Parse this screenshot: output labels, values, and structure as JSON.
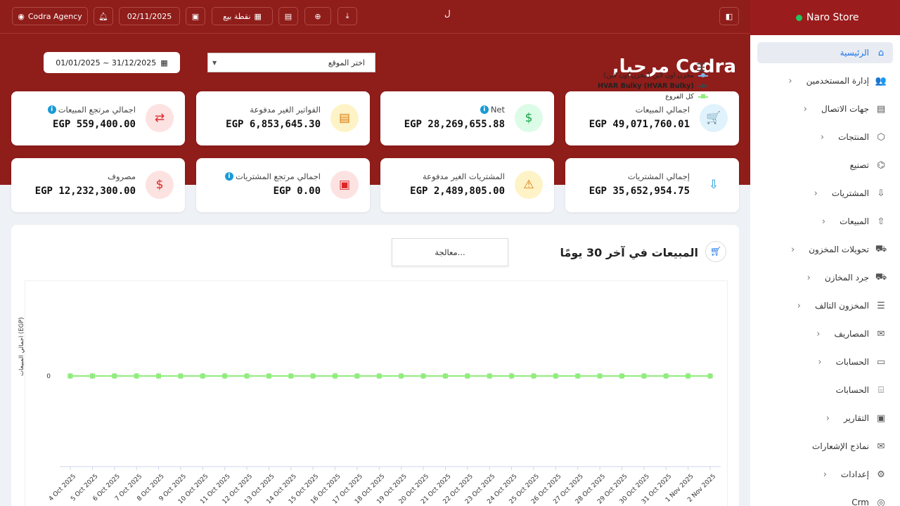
{
  "topbar": {
    "user_label": "Codra Agency",
    "date": "02/11/2025",
    "pos_label": "نقطة بيع",
    "spinner_glyph": "ﻝ"
  },
  "sidebar": {
    "store_name": "Naro Store",
    "items": [
      {
        "label": "الرئيسية",
        "icon": "home-icon",
        "glyph": "⌂",
        "active": true,
        "has_chevron": false
      },
      {
        "label": "إدارة المستخدمين",
        "icon": "users-icon",
        "glyph": "👥",
        "has_chevron": true
      },
      {
        "label": "جهات الاتصال",
        "icon": "contacts-icon",
        "glyph": "▤",
        "has_chevron": true
      },
      {
        "label": "المنتجات",
        "icon": "box-icon",
        "glyph": "⬡",
        "has_chevron": true
      },
      {
        "label": "تصنيع",
        "icon": "factory-icon",
        "glyph": "⌬",
        "has_chevron": false
      },
      {
        "label": "المشتريات",
        "icon": "download-icon",
        "glyph": "⇩",
        "has_chevron": true
      },
      {
        "label": "المبيعات",
        "icon": "upload-icon",
        "glyph": "⇧",
        "has_chevron": true
      },
      {
        "label": "تحويلات المخزون",
        "icon": "truck-icon",
        "glyph": "⛟",
        "has_chevron": true
      },
      {
        "label": "جرد المخازن",
        "icon": "truck-icon",
        "glyph": "⛟",
        "has_chevron": true
      },
      {
        "label": "المخزون التالف",
        "icon": "database-icon",
        "glyph": "☰",
        "has_chevron": true
      },
      {
        "label": "المصاريف",
        "icon": "mail-icon",
        "glyph": "✉",
        "has_chevron": true
      },
      {
        "label": "الحسابات",
        "icon": "wallet-icon",
        "glyph": "▭",
        "has_chevron": true
      },
      {
        "label": "الحسابات",
        "icon": "bank-icon",
        "glyph": "⌸",
        "has_chevron": false
      },
      {
        "label": "التقارير",
        "icon": "report-icon",
        "glyph": "▣",
        "has_chevron": true
      },
      {
        "label": "نماذج الإشعارات",
        "icon": "envelope-icon",
        "glyph": "✉",
        "has_chevron": false
      },
      {
        "label": "إعدادات",
        "icon": "gear-icon",
        "glyph": "⚙",
        "has_chevron": true
      },
      {
        "label": "Crm",
        "icon": "crm-icon",
        "glyph": "◎",
        "has_chevron": false
      }
    ]
  },
  "header": {
    "welcome": "Codra مرحبا,",
    "location_placeholder": "اختر الموقع",
    "date_range": "01/01/2025 ~ 31/12/2025"
  },
  "cards": [
    {
      "label": "اجمالي المبيعات",
      "value": "EGP 49,071,760.01",
      "icon": "cart-icon",
      "glyph": "🛒",
      "color": "#1a9ad6",
      "bg": "#e0f2fc",
      "info": false
    },
    {
      "label": "Net",
      "value": "EGP 28,269,655.88",
      "icon": "dollar-doc-icon",
      "glyph": "$",
      "color": "#16a34a",
      "bg": "#dcfce7",
      "info": true
    },
    {
      "label": "الفواتير الغير مدفوعة",
      "value": "EGP 6,853,645.30",
      "icon": "document-icon",
      "glyph": "▤",
      "color": "#d97706",
      "bg": "#fef3c7",
      "info": false
    },
    {
      "label": "اجمالي مرتجع المبيعات",
      "value": "EGP 559,400.00",
      "icon": "exchange-icon",
      "glyph": "⇄",
      "color": "#dc2626",
      "bg": "#fde2e2",
      "info": true
    },
    {
      "label": "إجمالي المشتريات",
      "value": "EGP 35,652,954.75",
      "icon": "download-circle-icon",
      "glyph": "⇩",
      "color": "#1a9ad6",
      "bg": "#ffffff",
      "info": false
    },
    {
      "label": "المشتريات الغير مدفوعة",
      "value": "EGP 2,489,805.00",
      "icon": "warning-icon",
      "glyph": "⚠",
      "color": "#d97706",
      "bg": "#fef3c7",
      "info": false
    },
    {
      "label": "اجمالي مرتجع المشتريات",
      "value": "EGP 0.00",
      "icon": "return-doc-icon",
      "glyph": "▣",
      "color": "#dc2626",
      "bg": "#fde2e2",
      "info": true
    },
    {
      "label": "مصروف",
      "value": "EGP 12,232,300.00",
      "icon": "receipt-icon",
      "glyph": "$",
      "color": "#dc2626",
      "bg": "#fde2e2",
      "info": false
    }
  ],
  "panel": {
    "title": "المبيعات في آخر 30 يومًا",
    "processing": "معالجة..."
  },
  "chart_data": {
    "type": "line",
    "title": "",
    "ylabel": "اجمالي المبيعات (EGP)",
    "xlabel": "",
    "y_ticks": [
      "0"
    ],
    "legend_placement": "top-right",
    "x": [
      "4 Oct 2025",
      "5 Oct 2025",
      "6 Oct 2025",
      "7 Oct 2025",
      "8 Oct 2025",
      "9 Oct 2025",
      "10 Oct 2025",
      "11 Oct 2025",
      "12 Oct 2025",
      "13 Oct 2025",
      "14 Oct 2025",
      "15 Oct 2025",
      "16 Oct 2025",
      "17 Oct 2025",
      "18 Oct 2025",
      "19 Oct 2025",
      "20 Oct 2025",
      "21 Oct 2025",
      "22 Oct 2025",
      "23 Oct 2025",
      "24 Oct 2025",
      "25 Oct 2025",
      "26 Oct 2025",
      "27 Oct 2025",
      "28 Oct 2025",
      "29 Oct 2025",
      "30 Oct 2025",
      "31 Oct 2025",
      "1 Nov 2025",
      "2 Nov 2025"
    ],
    "series": [
      {
        "name": "مخزن اون لاين (مخزن اون لاين)",
        "color": "#7cb5ec",
        "marker": "circle",
        "values": [
          0,
          0,
          0,
          0,
          0,
          0,
          0,
          0,
          0,
          0,
          0,
          0,
          0,
          0,
          0,
          0,
          0,
          0,
          0,
          0,
          0,
          0,
          0,
          0,
          0,
          0,
          0,
          0,
          0,
          0
        ]
      },
      {
        "name": "HVAR Bulky (HVAR Bulky)",
        "color": "#434348",
        "marker": "diamond",
        "values": [
          0,
          0,
          0,
          0,
          0,
          0,
          0,
          0,
          0,
          0,
          0,
          0,
          0,
          0,
          0,
          0,
          0,
          0,
          0,
          0,
          0,
          0,
          0,
          0,
          0,
          0,
          0,
          0,
          0,
          0
        ]
      },
      {
        "name": "كل الفروع",
        "color": "#90ed7d",
        "marker": "square",
        "values": [
          0,
          0,
          0,
          0,
          0,
          0,
          0,
          0,
          0,
          0,
          0,
          0,
          0,
          0,
          0,
          0,
          0,
          0,
          0,
          0,
          0,
          0,
          0,
          0,
          0,
          0,
          0,
          0,
          0,
          0
        ]
      }
    ]
  }
}
